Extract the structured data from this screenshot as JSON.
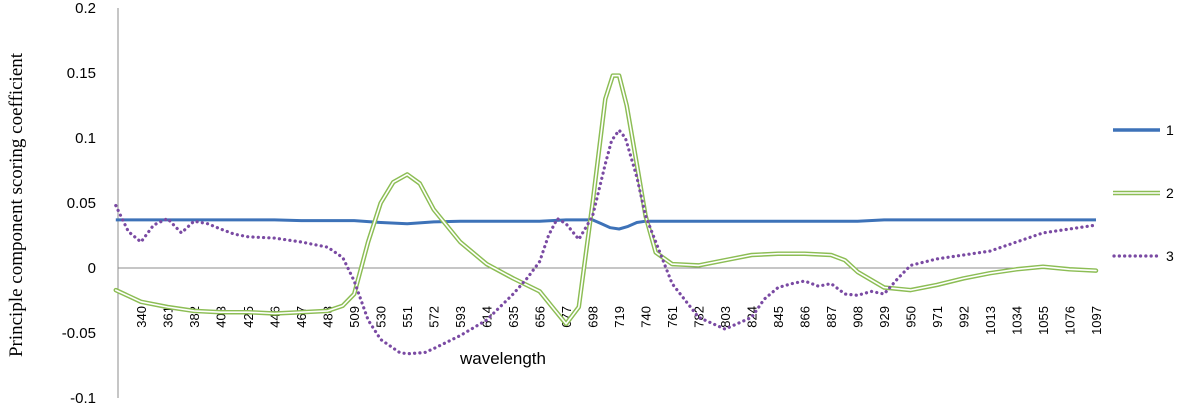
{
  "chart_data": {
    "type": "line",
    "xlabel": "wavelength",
    "ylabel": "Principle component scoring coefficient",
    "ylim": [
      -0.1,
      0.2
    ],
    "yticks": [
      "0.2",
      "0.15",
      "0.1",
      "0.05",
      "0",
      "-0.05",
      "-0.1"
    ],
    "categories": [
      "340",
      "361",
      "382",
      "403",
      "425",
      "446",
      "467",
      "488",
      "509",
      "530",
      "551",
      "572",
      "593",
      "614",
      "635",
      "656",
      "677",
      "698",
      "719",
      "740",
      "761",
      "782",
      "803",
      "824",
      "845",
      "866",
      "887",
      "908",
      "929",
      "950",
      "971",
      "992",
      "1013",
      "1034",
      "1055",
      "1076",
      "1097"
    ],
    "legend_position": "right",
    "series": [
      {
        "name": "1",
        "color": "#3d72b8",
        "style": "solid",
        "x": [
          320,
          340,
          361,
          382,
          403,
          425,
          446,
          467,
          488,
          509,
          530,
          551,
          572,
          593,
          614,
          635,
          656,
          677,
          698,
          705,
          712,
          719,
          726,
          733,
          740,
          761,
          782,
          803,
          824,
          845,
          866,
          887,
          908,
          929,
          950,
          971,
          992,
          1013,
          1034,
          1055,
          1076,
          1097
        ],
        "values": [
          0.037,
          0.037,
          0.037,
          0.037,
          0.037,
          0.037,
          0.037,
          0.0365,
          0.0365,
          0.0365,
          0.035,
          0.034,
          0.0355,
          0.036,
          0.036,
          0.036,
          0.036,
          0.037,
          0.037,
          0.034,
          0.031,
          0.03,
          0.032,
          0.035,
          0.036,
          0.036,
          0.036,
          0.036,
          0.036,
          0.036,
          0.036,
          0.036,
          0.036,
          0.037,
          0.037,
          0.037,
          0.037,
          0.037,
          0.037,
          0.037,
          0.037,
          0.037
        ]
      },
      {
        "name": "2",
        "color": "#8cbd54",
        "style": "double",
        "x": [
          320,
          340,
          361,
          382,
          403,
          425,
          446,
          467,
          488,
          500,
          509,
          520,
          530,
          540,
          551,
          561,
          572,
          593,
          614,
          635,
          656,
          666,
          677,
          687,
          698,
          708,
          714,
          719,
          725,
          733,
          740,
          748,
          761,
          782,
          803,
          824,
          845,
          866,
          887,
          898,
          908,
          929,
          950,
          971,
          992,
          1013,
          1034,
          1055,
          1076,
          1097
        ],
        "values": [
          -0.017,
          -0.026,
          -0.03,
          -0.033,
          -0.034,
          -0.034,
          -0.035,
          -0.034,
          -0.033,
          -0.029,
          -0.02,
          0.02,
          0.05,
          0.066,
          0.072,
          0.065,
          0.045,
          0.02,
          0.003,
          -0.008,
          -0.018,
          -0.03,
          -0.043,
          -0.03,
          0.05,
          0.13,
          0.148,
          0.148,
          0.125,
          0.08,
          0.04,
          0.012,
          0.003,
          0.002,
          0.006,
          0.01,
          0.011,
          0.011,
          0.01,
          0.006,
          -0.003,
          -0.015,
          -0.017,
          -0.013,
          -0.008,
          -0.004,
          -0.001,
          0.001,
          -0.001,
          -0.002
        ]
      },
      {
        "name": "3",
        "color": "#7a4aa3",
        "style": "dotted",
        "x": [
          320,
          330,
          340,
          350,
          361,
          372,
          382,
          393,
          403,
          414,
          425,
          446,
          467,
          488,
          500,
          509,
          520,
          530,
          545,
          551,
          565,
          572,
          593,
          614,
          635,
          646,
          656,
          663,
          670,
          677,
          687,
          698,
          708,
          713,
          719,
          724,
          733,
          740,
          761,
          782,
          803,
          824,
          834,
          845,
          856,
          866,
          877,
          887,
          898,
          908,
          919,
          929,
          940,
          950,
          971,
          992,
          1013,
          1034,
          1055,
          1076,
          1097
        ],
        "values": [
          0.048,
          0.028,
          0.02,
          0.033,
          0.038,
          0.027,
          0.036,
          0.034,
          0.03,
          0.026,
          0.024,
          0.023,
          0.02,
          0.016,
          0.008,
          -0.01,
          -0.04,
          -0.055,
          -0.065,
          -0.066,
          -0.065,
          -0.062,
          -0.052,
          -0.04,
          -0.02,
          -0.008,
          0.005,
          0.025,
          0.038,
          0.034,
          0.022,
          0.04,
          0.08,
          0.098,
          0.106,
          0.1,
          0.07,
          0.04,
          -0.012,
          -0.038,
          -0.047,
          -0.038,
          -0.024,
          -0.015,
          -0.012,
          -0.01,
          -0.014,
          -0.012,
          -0.02,
          -0.021,
          -0.018,
          -0.02,
          -0.008,
          0.002,
          0.007,
          0.01,
          0.013,
          0.02,
          0.027,
          0.03,
          0.033
        ]
      }
    ]
  }
}
